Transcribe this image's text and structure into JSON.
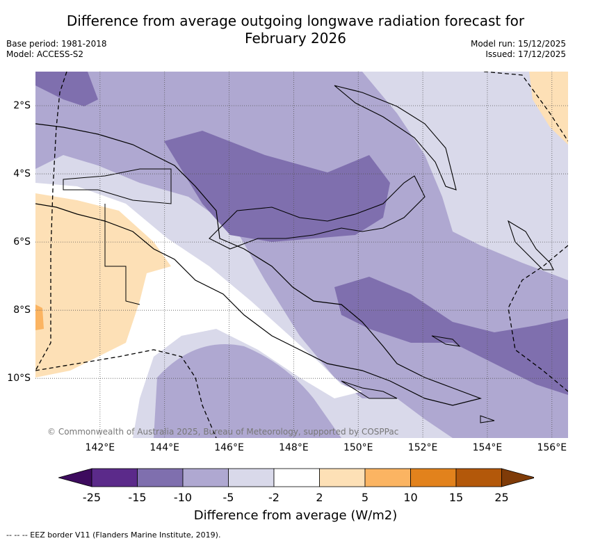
{
  "title": {
    "line1": "Difference from average outgoing longwave radiation forecast for",
    "line2": "February 2026"
  },
  "meta_left": {
    "base_period": "Base period: 1981-2018",
    "model": "Model: ACCESS-S2"
  },
  "meta_right": {
    "model_run": "Model run: 15/12/2025",
    "issued": "Issued: 17/12/2025"
  },
  "map": {
    "lon_ticks": [
      "142°E",
      "144°E",
      "146°E",
      "148°E",
      "150°E",
      "152°E",
      "154°E",
      "156°E"
    ],
    "lat_ticks": [
      "2°S",
      "4°S",
      "6°S",
      "8°S",
      "10°S"
    ],
    "lon_range": [
      140.0,
      156.5
    ],
    "lat_range": [
      -11.75,
      -1.0
    ],
    "copyright": "© Commonwealth of Australia 2025, Bureau of Meteorology, supported by COSPPac"
  },
  "colorbar": {
    "ticks": [
      "-25",
      "-15",
      "-10",
      "-5",
      "-2",
      "2",
      "5",
      "10",
      "15",
      "25"
    ],
    "colors": [
      "#3d0b5e",
      "#5b2a8a",
      "#7f6fae",
      "#afa8d1",
      "#d9d9ea",
      "#ffffff",
      "#fde0b6",
      "#fbb462",
      "#e2821c",
      "#b3580a",
      "#7f3b08"
    ],
    "label": "Difference from average (W/m2)"
  },
  "footer": "--  --  -- EEZ border V11 (Flanders Marine Institute, 2019)."
}
